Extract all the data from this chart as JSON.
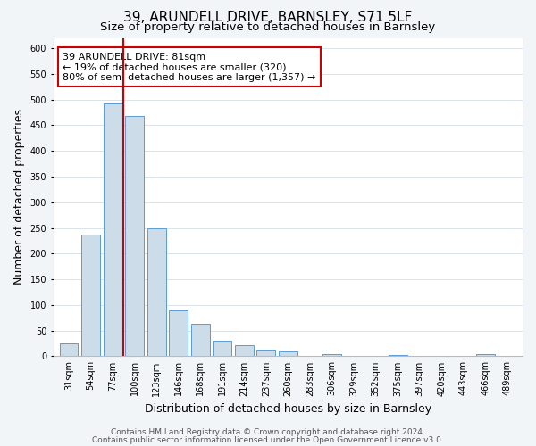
{
  "title": "39, ARUNDELL DRIVE, BARNSLEY, S71 5LF",
  "subtitle": "Size of property relative to detached houses in Barnsley",
  "xlabel": "Distribution of detached houses by size in Barnsley",
  "ylabel": "Number of detached properties",
  "bar_labels": [
    "31sqm",
    "54sqm",
    "77sqm",
    "100sqm",
    "123sqm",
    "146sqm",
    "168sqm",
    "191sqm",
    "214sqm",
    "237sqm",
    "260sqm",
    "283sqm",
    "306sqm",
    "329sqm",
    "352sqm",
    "375sqm",
    "397sqm",
    "420sqm",
    "443sqm",
    "466sqm",
    "489sqm"
  ],
  "bar_values": [
    25,
    237,
    492,
    468,
    250,
    90,
    63,
    30,
    22,
    13,
    10,
    0,
    5,
    0,
    0,
    3,
    0,
    0,
    0,
    5,
    0
  ],
  "bar_color": "#ccdce8",
  "bar_edge_color": "#5b9bd5",
  "annotation_box_text": "39 ARUNDELL DRIVE: 81sqm\n← 19% of detached houses are smaller (320)\n80% of semi-detached houses are larger (1,357) →",
  "annotation_box_facecolor": "white",
  "annotation_box_edgecolor": "#cc0000",
  "vline_color": "#cc0000",
  "ylim": [
    0,
    620
  ],
  "yticks": [
    0,
    50,
    100,
    150,
    200,
    250,
    300,
    350,
    400,
    450,
    500,
    550,
    600
  ],
  "footer_line1": "Contains HM Land Registry data © Crown copyright and database right 2024.",
  "footer_line2": "Contains public sector information licensed under the Open Government Licence v3.0.",
  "bg_color": "#f2f5f8",
  "plot_bg_color": "white",
  "title_fontsize": 11,
  "subtitle_fontsize": 9.5,
  "axis_label_fontsize": 9,
  "tick_fontsize": 7,
  "annotation_fontsize": 8,
  "footer_fontsize": 6.5
}
